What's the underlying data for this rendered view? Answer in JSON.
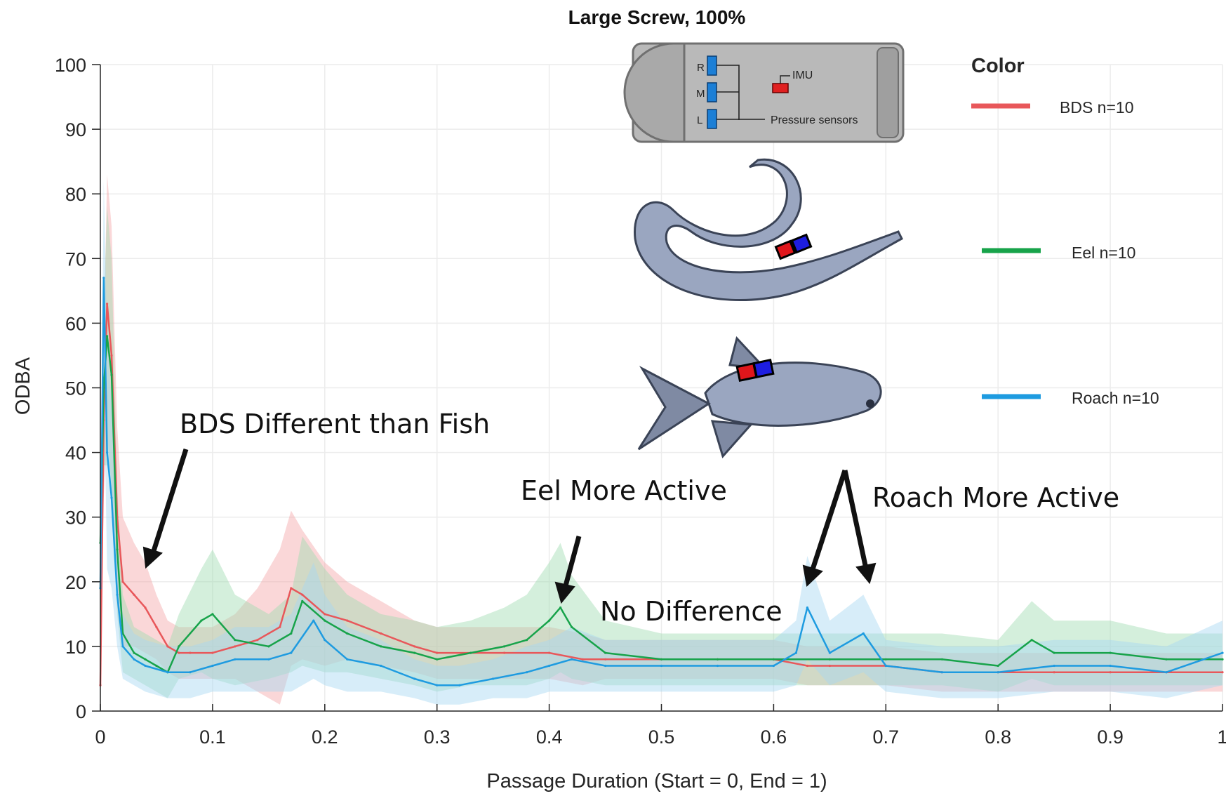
{
  "chart_data": {
    "type": "line",
    "title": "Large Screw, 100%",
    "xlabel": "Passage Duration (Start = 0, End = 1)",
    "ylabel": "ODBA",
    "xlim": [
      0,
      1
    ],
    "ylim": [
      0,
      100
    ],
    "x_ticks": [
      "0",
      "0.1",
      "0.2",
      "0.3",
      "0.4",
      "0.5",
      "0.6",
      "0.7",
      "0.8",
      "0.9",
      "1"
    ],
    "y_ticks": [
      "0",
      "10",
      "20",
      "30",
      "40",
      "50",
      "60",
      "70",
      "80",
      "90",
      "100"
    ],
    "grid": true,
    "legend": {
      "title": "Color",
      "position": "top-right"
    },
    "series": [
      {
        "name": "BDS n=10",
        "color": "#e8575a",
        "band_color": "#f4a6a8",
        "x": [
          0,
          0.003,
          0.006,
          0.01,
          0.015,
          0.02,
          0.03,
          0.04,
          0.05,
          0.06,
          0.07,
          0.08,
          0.1,
          0.12,
          0.14,
          0.16,
          0.17,
          0.18,
          0.2,
          0.22,
          0.25,
          0.28,
          0.3,
          0.33,
          0.36,
          0.4,
          0.43,
          0.45,
          0.5,
          0.55,
          0.6,
          0.63,
          0.65,
          0.7,
          0.75,
          0.8,
          0.85,
          0.9,
          0.95,
          1
        ],
        "y": [
          4,
          45,
          63,
          55,
          30,
          20,
          18,
          16,
          13,
          10,
          9,
          9,
          9,
          10,
          11,
          13,
          19,
          18,
          15,
          14,
          12,
          10,
          9,
          9,
          9,
          9,
          8,
          8,
          8,
          8,
          8,
          7,
          7,
          7,
          6,
          6,
          6,
          6,
          6,
          6
        ],
        "band": [
          3,
          12,
          20,
          20,
          14,
          10,
          8,
          7,
          5,
          4,
          4,
          4,
          4,
          5,
          8,
          12,
          12,
          10,
          8,
          6,
          5,
          4,
          4,
          4,
          4,
          4,
          4,
          3,
          3,
          3,
          3,
          3,
          3,
          3,
          3,
          3,
          3,
          3,
          3,
          3
        ]
      },
      {
        "name": "Eel n=10",
        "color": "#17a34a",
        "band_color": "#9fdcb1",
        "x": [
          0,
          0.003,
          0.006,
          0.01,
          0.015,
          0.02,
          0.03,
          0.04,
          0.05,
          0.06,
          0.07,
          0.09,
          0.1,
          0.12,
          0.15,
          0.17,
          0.18,
          0.2,
          0.22,
          0.25,
          0.28,
          0.3,
          0.33,
          0.36,
          0.38,
          0.4,
          0.41,
          0.42,
          0.45,
          0.5,
          0.55,
          0.6,
          0.65,
          0.7,
          0.75,
          0.8,
          0.83,
          0.85,
          0.9,
          0.95,
          1
        ],
        "y": [
          26,
          50,
          58,
          52,
          25,
          12,
          9,
          8,
          7,
          6,
          10,
          14,
          15,
          11,
          10,
          12,
          17,
          14,
          12,
          10,
          9,
          8,
          9,
          10,
          11,
          14,
          16,
          13,
          9,
          8,
          8,
          8,
          8,
          8,
          8,
          7,
          11,
          9,
          9,
          8,
          8
        ],
        "band": [
          4,
          12,
          20,
          18,
          10,
          6,
          4,
          4,
          4,
          4,
          5,
          8,
          10,
          7,
          5,
          6,
          10,
          8,
          6,
          5,
          5,
          5,
          5,
          6,
          7,
          9,
          10,
          8,
          5,
          4,
          4,
          4,
          4,
          4,
          4,
          4,
          6,
          5,
          5,
          4,
          4
        ]
      },
      {
        "name": "Roach n=10",
        "color": "#1e9be0",
        "band_color": "#a6d8f2",
        "x": [
          0,
          0.003,
          0.006,
          0.01,
          0.015,
          0.02,
          0.03,
          0.04,
          0.06,
          0.08,
          0.1,
          0.12,
          0.15,
          0.17,
          0.19,
          0.2,
          0.22,
          0.25,
          0.28,
          0.3,
          0.32,
          0.35,
          0.38,
          0.4,
          0.42,
          0.45,
          0.5,
          0.55,
          0.6,
          0.62,
          0.63,
          0.65,
          0.68,
          0.7,
          0.75,
          0.8,
          0.85,
          0.9,
          0.95,
          1
        ],
        "y": [
          19,
          67,
          40,
          33,
          18,
          10,
          8,
          7,
          6,
          6,
          7,
          8,
          8,
          9,
          14,
          11,
          8,
          7,
          5,
          4,
          4,
          5,
          6,
          7,
          8,
          7,
          7,
          7,
          7,
          9,
          16,
          9,
          12,
          7,
          6,
          6,
          7,
          7,
          6,
          9
        ],
        "band": [
          4,
          15,
          18,
          14,
          8,
          5,
          4,
          4,
          4,
          4,
          4,
          5,
          5,
          6,
          9,
          7,
          5,
          4,
          3,
          3,
          3,
          3,
          4,
          4,
          5,
          4,
          4,
          4,
          4,
          5,
          8,
          5,
          6,
          4,
          4,
          4,
          4,
          4,
          4,
          5
        ]
      }
    ]
  },
  "annotations": {
    "bds": "BDS Different than Fish",
    "eel": "Eel More Active",
    "none": "No Difference",
    "roach": "Roach More Active"
  },
  "device_labels": {
    "r": "R",
    "m": "M",
    "l": "L",
    "imu": "IMU",
    "pressure": "Pressure sensors"
  },
  "colors": {
    "device_body": "#b3b3b3",
    "sensor_blue": "#1c7fd6",
    "imu_red": "#e02020",
    "fish_body": "#9aa6c0",
    "tag_red": "#e0161b",
    "tag_blue": "#1d1de0"
  }
}
